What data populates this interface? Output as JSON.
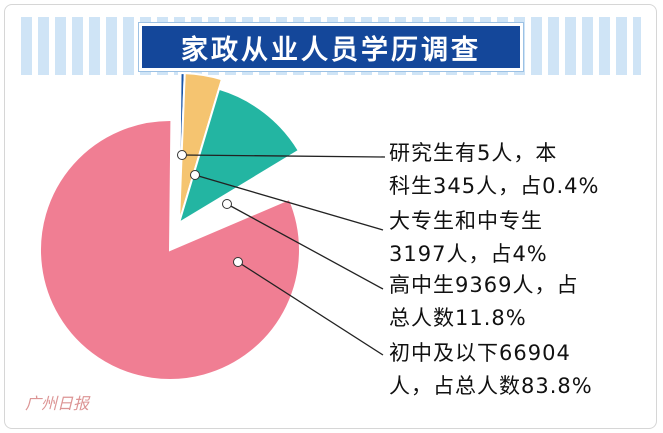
{
  "chart_data": {
    "type": "pie",
    "title": "家政从业人员学历调查",
    "slices": [
      {
        "category": "研究生",
        "count": 5,
        "percent": 0.006,
        "color": "#1a56a8"
      },
      {
        "category": "本科生",
        "count": 345,
        "percent": 0.4,
        "color": "#1a56a8"
      },
      {
        "category": "大专生和中专生",
        "count": 3197,
        "percent": 4,
        "color": "#f5c470"
      },
      {
        "category": "高中生",
        "count": 9369,
        "percent": 11.8,
        "color": "#23b5a2"
      },
      {
        "category": "初中及以下",
        "count": 66904,
        "percent": 83.8,
        "color": "#f07e93"
      }
    ],
    "labels": [
      {
        "line1": "研究生有5人，本",
        "line2": "科生345人，占0.4%"
      },
      {
        "line1": "大专生和中专生",
        "line2": "3197人，占4%"
      },
      {
        "line1": "高中生9369人，占",
        "line2": "总人数11.8%"
      },
      {
        "line1": "初中及以下66904",
        "line2": "人，占总人数83.8%"
      }
    ]
  },
  "watermark": "广州日报"
}
